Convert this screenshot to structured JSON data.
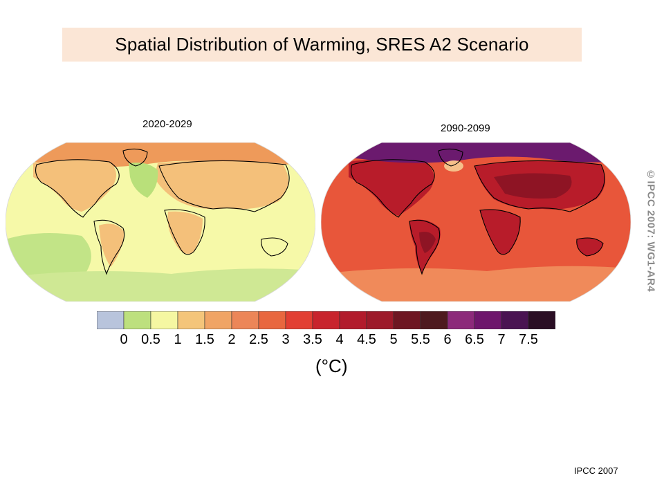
{
  "title": "Spatial Distribution of Warming, SRES A2 Scenario",
  "maps": [
    {
      "label": "2020-2029",
      "ocean_color": "#f6f9a8",
      "regions": [
        {
          "name": "north-atlantic-cool",
          "color": "#b9e07a",
          "level": "0.5-1"
        },
        {
          "name": "south-pacific-cool",
          "color": "#c2e487",
          "level": "0.5-1"
        },
        {
          "name": "southern-ocean-cool",
          "color": "#cfe894",
          "level": "0.5-1"
        },
        {
          "name": "land-warm",
          "color": "#f4c07a",
          "level": "1-1.5"
        },
        {
          "name": "arctic-warm",
          "color": "#ee9a5a",
          "level": "1.5-2"
        }
      ]
    },
    {
      "label": "2090-2099",
      "ocean_color": "#e8563a",
      "regions": [
        {
          "name": "land-hot",
          "color": "#b81c2a",
          "level": "4-4.5"
        },
        {
          "name": "interior-hot",
          "color": "#8e1424",
          "level": "4.5-5"
        },
        {
          "name": "arctic-extreme",
          "color": "#6b1a6e",
          "level": "6.5-7"
        },
        {
          "name": "north-atlantic-mild",
          "color": "#f6c08a",
          "level": "1.5-2"
        },
        {
          "name": "southern-ocean-mild",
          "color": "#f08a5a",
          "level": "2.5-3"
        }
      ]
    }
  ],
  "legend": {
    "colors": [
      "#b8c4dc",
      "#bde07e",
      "#f5f7a2",
      "#f4c57a",
      "#f0a465",
      "#ec8658",
      "#e8673f",
      "#e23f33",
      "#c8242d",
      "#b21b2c",
      "#9d1a2a",
      "#6e1622",
      "#4e1a1f",
      "#8c2a7a",
      "#6e166c",
      "#4a1452",
      "#2a0e24"
    ],
    "ticks": [
      "0",
      "0.5",
      "1",
      "1.5",
      "2",
      "2.5",
      "3",
      "3.5",
      "4",
      "4.5",
      "5",
      "5.5",
      "6",
      "6.5",
      "7",
      "7.5"
    ],
    "units": "(°C)"
  },
  "copyright_vertical": "©IPCC 2007: WG1-AR4",
  "source": "IPCC 2007"
}
